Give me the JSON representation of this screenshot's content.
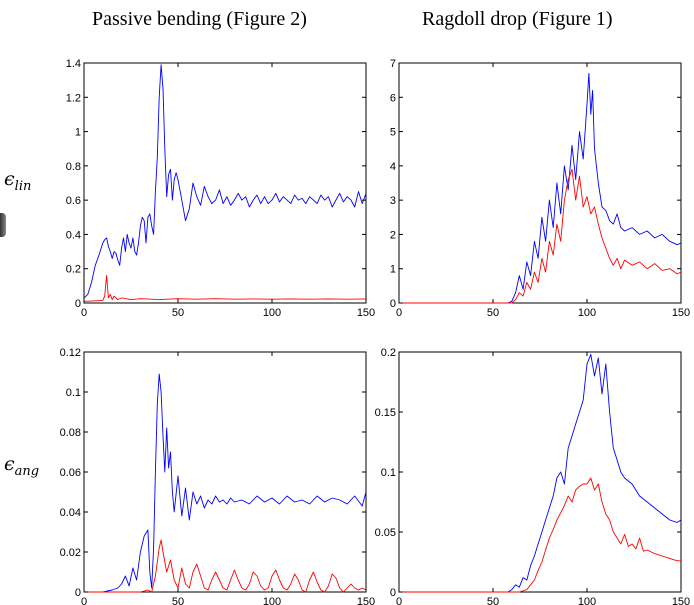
{
  "titles": {
    "left": "Passive bending (Figure 2)",
    "right": "Ragdoll drop (Figure 1)"
  },
  "row_labels": {
    "lin": {
      "symbol": "ϵ",
      "sub": "lin"
    },
    "ang": {
      "symbol": "ϵ",
      "sub": "ang"
    }
  },
  "colors": {
    "blue": "#0000ff",
    "red": "#ff0000",
    "axis": "#000000"
  },
  "chart_data": [
    {
      "id": "passive-lin",
      "type": "line",
      "title": "Passive bending (Figure 2)",
      "ylabel": "ϵlin",
      "xlim": [
        0,
        150
      ],
      "ylim": [
        0,
        1.4
      ],
      "xticks": [
        0,
        50,
        100,
        150
      ],
      "yticks": [
        0,
        0.2,
        0.4,
        0.6,
        0.8,
        1,
        1.2,
        1.4
      ],
      "ytick_labels": [
        "0",
        "0.2",
        "0.4",
        "0.6",
        "0.8",
        "1",
        "1.2",
        "1.4"
      ],
      "grid": false,
      "series": [
        {
          "color": "#0000ff",
          "x": [
            0,
            2,
            4,
            6,
            8,
            10,
            11,
            12,
            13,
            14,
            15,
            16,
            17,
            18,
            19,
            20,
            21,
            22,
            23,
            24,
            25,
            26,
            27,
            28,
            29,
            30,
            31,
            32,
            33,
            34,
            35,
            36,
            37,
            38,
            39,
            40,
            41,
            42,
            43,
            44,
            45,
            46,
            47,
            48,
            49,
            50,
            52,
            54,
            56,
            58,
            60,
            62,
            64,
            66,
            68,
            70,
            72,
            74,
            76,
            78,
            80,
            82,
            84,
            86,
            88,
            90,
            92,
            94,
            96,
            98,
            100,
            102,
            104,
            106,
            108,
            110,
            112,
            114,
            116,
            118,
            120,
            122,
            124,
            126,
            128,
            130,
            132,
            134,
            136,
            138,
            140,
            142,
            144,
            146,
            148,
            150
          ],
          "y": [
            0.03,
            0.05,
            0.12,
            0.22,
            0.28,
            0.35,
            0.37,
            0.38,
            0.33,
            0.3,
            0.26,
            0.3,
            0.29,
            0.25,
            0.22,
            0.32,
            0.38,
            0.3,
            0.4,
            0.35,
            0.32,
            0.38,
            0.3,
            0.28,
            0.35,
            0.45,
            0.5,
            0.48,
            0.35,
            0.5,
            0.52,
            0.45,
            0.4,
            0.65,
            0.85,
            1.2,
            1.39,
            1.25,
            0.9,
            0.62,
            0.75,
            0.78,
            0.6,
            0.72,
            0.76,
            0.72,
            0.6,
            0.48,
            0.55,
            0.7,
            0.62,
            0.57,
            0.68,
            0.62,
            0.58,
            0.6,
            0.66,
            0.58,
            0.62,
            0.57,
            0.6,
            0.64,
            0.6,
            0.62,
            0.56,
            0.6,
            0.63,
            0.58,
            0.62,
            0.58,
            0.6,
            0.64,
            0.59,
            0.62,
            0.6,
            0.58,
            0.63,
            0.6,
            0.61,
            0.58,
            0.62,
            0.6,
            0.58,
            0.63,
            0.6,
            0.62,
            0.56,
            0.6,
            0.64,
            0.59,
            0.62,
            0.6,
            0.56,
            0.65,
            0.58,
            0.64
          ]
        },
        {
          "color": "#ff0000",
          "x": [
            0,
            5,
            10,
            11,
            12,
            13,
            14,
            15,
            16,
            18,
            20,
            25,
            30,
            40,
            50,
            60,
            70,
            80,
            90,
            100,
            110,
            120,
            130,
            140,
            150
          ],
          "y": [
            0.01,
            0.012,
            0.015,
            0.04,
            0.16,
            0.03,
            0.05,
            0.02,
            0.04,
            0.02,
            0.03,
            0.02,
            0.025,
            0.02,
            0.025,
            0.022,
            0.025,
            0.022,
            0.024,
            0.022,
            0.024,
            0.022,
            0.024,
            0.022,
            0.024
          ]
        }
      ]
    },
    {
      "id": "ragdoll-lin",
      "type": "line",
      "title": "Ragdoll drop (Figure 1)",
      "xlim": [
        0,
        150
      ],
      "ylim": [
        0,
        7
      ],
      "xticks": [
        0,
        50,
        100,
        150
      ],
      "yticks": [
        0,
        1,
        2,
        3,
        4,
        5,
        6,
        7
      ],
      "ytick_labels": [
        "0",
        "1",
        "2",
        "3",
        "4",
        "5",
        "6",
        "7"
      ],
      "grid": false,
      "series": [
        {
          "color": "#0000ff",
          "x": [
            0,
            20,
            40,
            50,
            55,
            58,
            60,
            62,
            64,
            66,
            68,
            70,
            72,
            74,
            76,
            78,
            80,
            82,
            84,
            86,
            88,
            90,
            92,
            94,
            96,
            98,
            100,
            101,
            102,
            103,
            104,
            106,
            108,
            110,
            112,
            114,
            116,
            118,
            120,
            124,
            128,
            132,
            136,
            140,
            144,
            148,
            150
          ],
          "y": [
            0,
            0,
            0,
            0,
            0,
            0,
            0.05,
            0.3,
            0.8,
            0.4,
            1.2,
            0.8,
            1.8,
            1.3,
            2.5,
            1.8,
            3.0,
            2.2,
            3.5,
            2.6,
            4.0,
            3.3,
            4.6,
            3.6,
            5.0,
            4.2,
            5.8,
            6.7,
            5.5,
            6.2,
            4.5,
            3.5,
            2.8,
            2.7,
            2.4,
            2.3,
            2.6,
            2.2,
            2.1,
            2.2,
            2.0,
            2.1,
            1.9,
            2.0,
            1.8,
            1.7,
            1.75
          ]
        },
        {
          "color": "#ff0000",
          "x": [
            0,
            20,
            40,
            50,
            60,
            62,
            64,
            66,
            68,
            70,
            72,
            74,
            76,
            78,
            80,
            82,
            84,
            86,
            88,
            90,
            92,
            94,
            96,
            98,
            100,
            102,
            104,
            106,
            108,
            110,
            112,
            114,
            116,
            118,
            120,
            124,
            128,
            132,
            136,
            140,
            144,
            148,
            150
          ],
          "y": [
            0,
            0,
            0,
            0,
            0,
            0.1,
            0.3,
            0.2,
            0.6,
            0.4,
            0.9,
            0.6,
            1.3,
            0.9,
            1.8,
            1.4,
            2.3,
            1.8,
            3.0,
            3.6,
            3.9,
            3.0,
            3.7,
            2.8,
            3.1,
            2.6,
            2.8,
            2.3,
            1.9,
            1.6,
            1.3,
            1.1,
            1.3,
            1.0,
            1.25,
            1.1,
            1.2,
            1.0,
            1.15,
            0.95,
            1.0,
            0.85,
            0.9
          ]
        }
      ]
    },
    {
      "id": "passive-ang",
      "type": "line",
      "xlim": [
        0,
        150
      ],
      "ylim": [
        0,
        0.12
      ],
      "xticks": [
        0,
        50,
        100,
        150
      ],
      "yticks": [
        0,
        0.02,
        0.04,
        0.06,
        0.08,
        0.1,
        0.12
      ],
      "ytick_labels": [
        "0",
        "0.02",
        "0.04",
        "0.06",
        "0.08",
        "0.1",
        "0.12"
      ],
      "ylabel": "ϵang",
      "grid": false,
      "series": [
        {
          "color": "#0000ff",
          "x": [
            0,
            10,
            15,
            18,
            20,
            22,
            24,
            26,
            28,
            30,
            32,
            34,
            35,
            36,
            37,
            38,
            39,
            40,
            41,
            42,
            43,
            44,
            45,
            46,
            47,
            48,
            50,
            52,
            54,
            56,
            58,
            60,
            62,
            64,
            66,
            68,
            70,
            72,
            74,
            76,
            78,
            80,
            84,
            88,
            92,
            96,
            100,
            104,
            108,
            112,
            116,
            120,
            124,
            128,
            132,
            136,
            140,
            144,
            148,
            150
          ],
          "y": [
            0,
            0,
            0.001,
            0.002,
            0.004,
            0.008,
            0.003,
            0.012,
            0.006,
            0.02,
            0.028,
            0.031,
            0.01,
            0.002,
            0.022,
            0.06,
            0.094,
            0.109,
            0.1,
            0.078,
            0.06,
            0.082,
            0.062,
            0.07,
            0.05,
            0.04,
            0.058,
            0.038,
            0.052,
            0.036,
            0.05,
            0.044,
            0.048,
            0.042,
            0.046,
            0.044,
            0.048,
            0.045,
            0.046,
            0.044,
            0.047,
            0.045,
            0.046,
            0.044,
            0.048,
            0.045,
            0.047,
            0.044,
            0.048,
            0.045,
            0.046,
            0.044,
            0.048,
            0.045,
            0.047,
            0.046,
            0.044,
            0.048,
            0.043,
            0.05
          ]
        },
        {
          "color": "#ff0000",
          "x": [
            0,
            20,
            30,
            34,
            36,
            38,
            40,
            41,
            42,
            44,
            46,
            48,
            50,
            52,
            54,
            56,
            58,
            60,
            62,
            64,
            66,
            68,
            70,
            72,
            74,
            76,
            78,
            80,
            82,
            84,
            86,
            88,
            90,
            92,
            94,
            96,
            98,
            100,
            102,
            104,
            106,
            108,
            110,
            112,
            114,
            116,
            118,
            120,
            122,
            124,
            126,
            128,
            130,
            132,
            134,
            136,
            138,
            140,
            142,
            144,
            146,
            148,
            150
          ],
          "y": [
            0,
            0,
            0,
            0.001,
            0,
            0.008,
            0.022,
            0.026,
            0.02,
            0.01,
            0.016,
            0.006,
            0.002,
            0.012,
            0.004,
            0.002,
            0.01,
            0.014,
            0.008,
            0.002,
            0.001,
            0.006,
            0.01,
            0.006,
            0.002,
            0.001,
            0.006,
            0.011,
            0.006,
            0.002,
            0.001,
            0.004,
            0.01,
            0.008,
            0.003,
            0.001,
            0.002,
            0.008,
            0.011,
            0.006,
            0.002,
            0.001,
            0.004,
            0.009,
            0.006,
            0.001,
            0,
            0.006,
            0.01,
            0.005,
            0.001,
            0,
            0.003,
            0.009,
            0.007,
            0.002,
            0,
            0.002,
            0.004,
            0.002,
            0.001,
            0.002,
            0.001
          ]
        }
      ]
    },
    {
      "id": "ragdoll-ang",
      "type": "line",
      "xlim": [
        0,
        150
      ],
      "ylim": [
        0,
        0.2
      ],
      "xticks": [
        0,
        50,
        100,
        150
      ],
      "yticks": [
        0,
        0.05,
        0.1,
        0.15,
        0.2
      ],
      "ytick_labels": [
        "0",
        "0.05",
        "0.1",
        "0.15",
        "0.2"
      ],
      "grid": false,
      "series": [
        {
          "color": "#0000ff",
          "x": [
            0,
            20,
            40,
            50,
            55,
            58,
            60,
            62,
            64,
            66,
            68,
            70,
            72,
            74,
            76,
            78,
            80,
            82,
            84,
            86,
            88,
            90,
            92,
            94,
            96,
            98,
            100,
            102,
            104,
            106,
            108,
            110,
            112,
            114,
            116,
            118,
            120,
            124,
            128,
            132,
            136,
            140,
            144,
            148,
            150
          ],
          "y": [
            0,
            0,
            0,
            0,
            0,
            0,
            0.002,
            0.006,
            0.004,
            0.012,
            0.01,
            0.022,
            0.03,
            0.04,
            0.05,
            0.06,
            0.07,
            0.08,
            0.095,
            0.1,
            0.09,
            0.12,
            0.13,
            0.14,
            0.15,
            0.16,
            0.19,
            0.198,
            0.18,
            0.195,
            0.165,
            0.19,
            0.15,
            0.12,
            0.11,
            0.1,
            0.095,
            0.09,
            0.08,
            0.075,
            0.07,
            0.065,
            0.06,
            0.058,
            0.06
          ]
        },
        {
          "color": "#ff0000",
          "x": [
            0,
            20,
            40,
            50,
            60,
            64,
            68,
            70,
            72,
            74,
            76,
            78,
            80,
            82,
            84,
            86,
            88,
            90,
            92,
            94,
            96,
            98,
            100,
            102,
            104,
            106,
            108,
            110,
            112,
            114,
            116,
            118,
            120,
            122,
            124,
            126,
            128,
            130,
            132,
            136,
            140,
            144,
            148,
            150
          ],
          "y": [
            0,
            0,
            0,
            0,
            0,
            0,
            0.002,
            0.006,
            0.01,
            0.018,
            0.025,
            0.035,
            0.045,
            0.052,
            0.06,
            0.066,
            0.072,
            0.08,
            0.075,
            0.085,
            0.088,
            0.09,
            0.09,
            0.095,
            0.085,
            0.09,
            0.075,
            0.065,
            0.06,
            0.05,
            0.045,
            0.04,
            0.048,
            0.038,
            0.04,
            0.036,
            0.045,
            0.034,
            0.035,
            0.032,
            0.03,
            0.028,
            0.026,
            0.026
          ]
        }
      ]
    }
  ]
}
